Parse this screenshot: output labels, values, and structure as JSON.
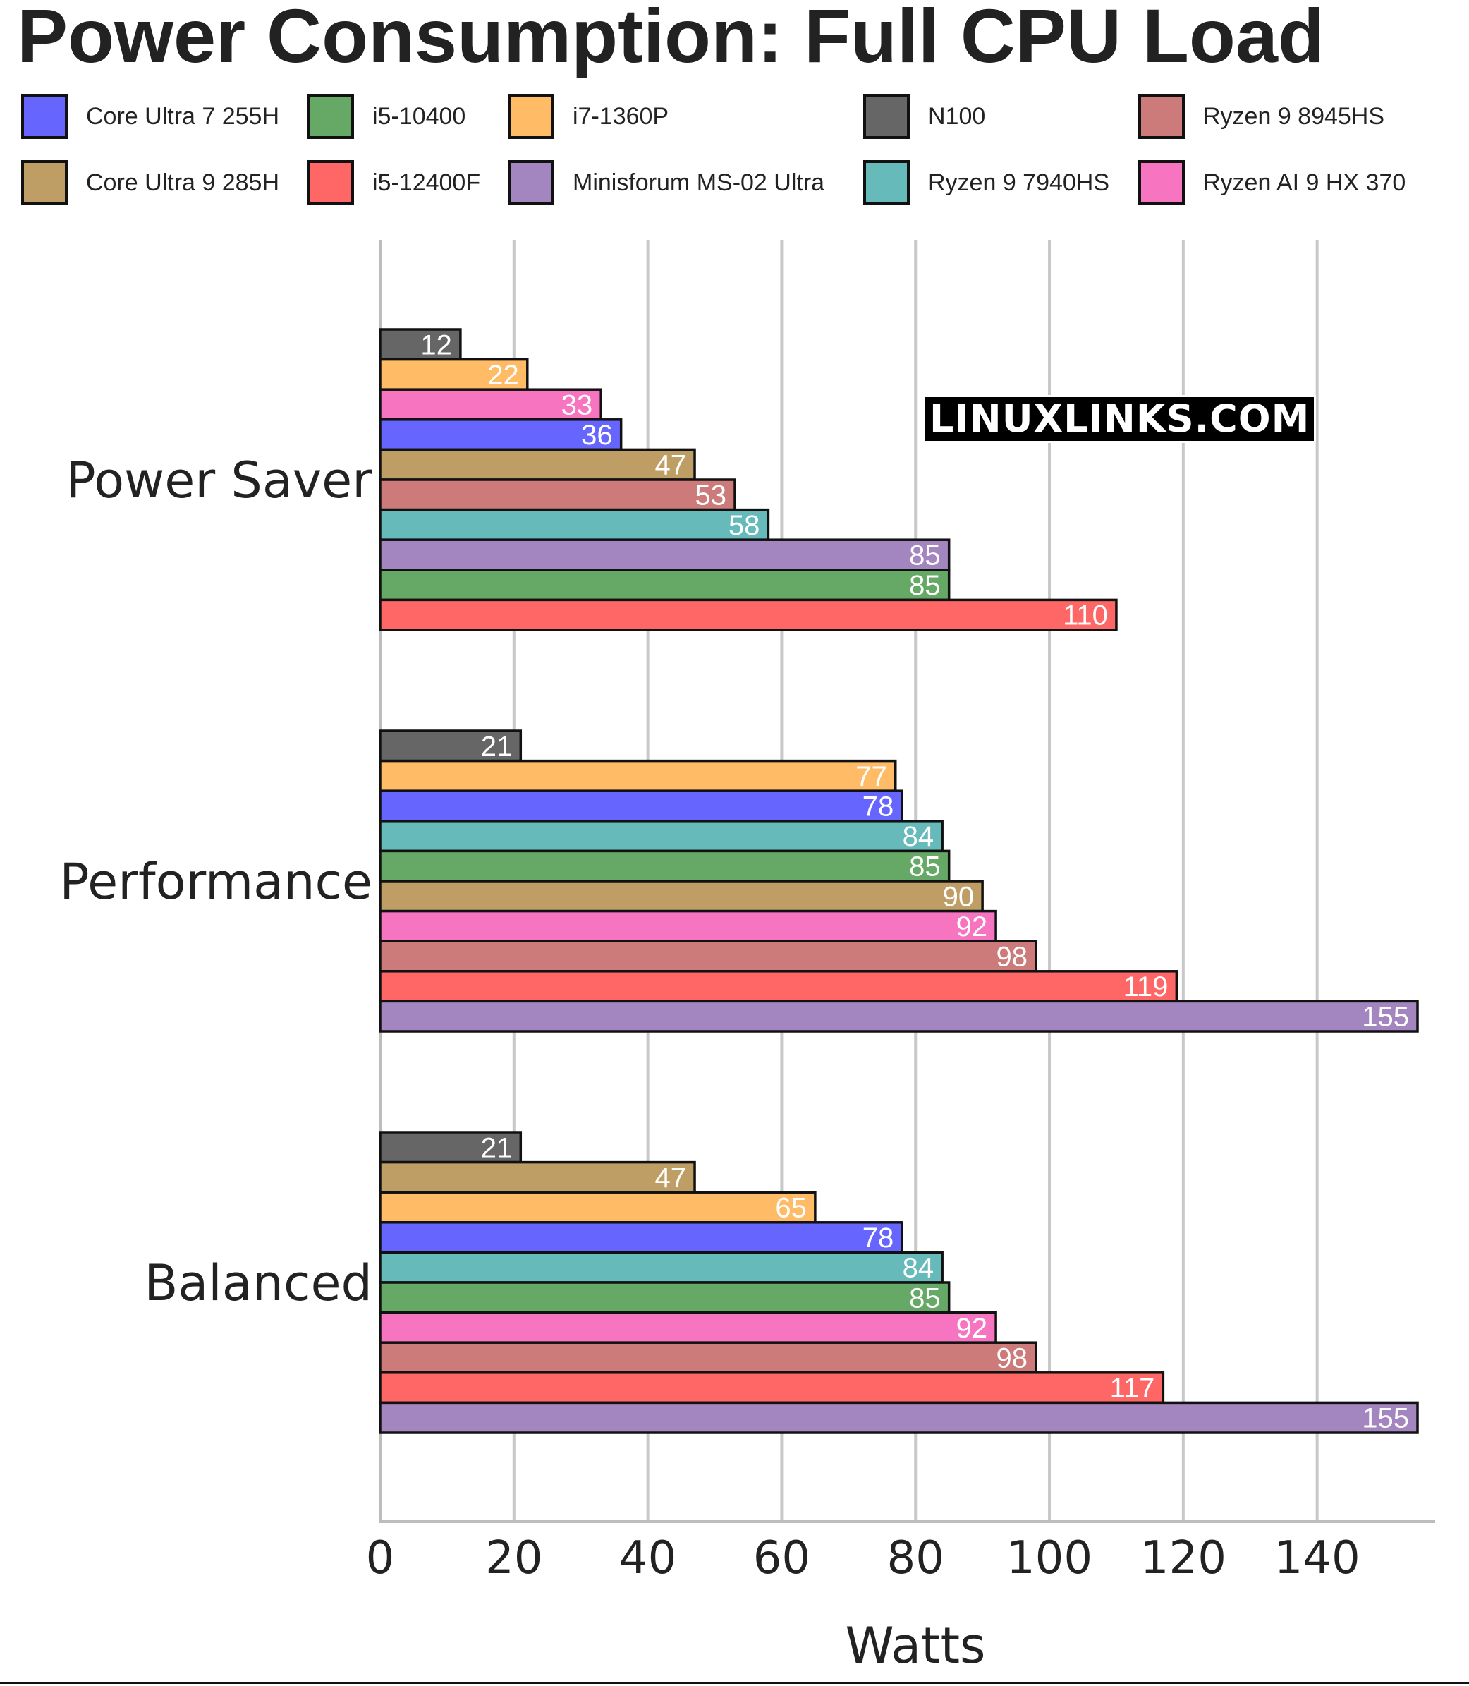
{
  "chart_data": {
    "type": "bar",
    "orientation": "horizontal",
    "title": "Power Consumption: Full CPU Load",
    "xlabel": "Watts",
    "ylabel": "",
    "xlim": [
      0,
      155
    ],
    "xticks": [
      0,
      20,
      40,
      60,
      80,
      100,
      120,
      140
    ],
    "grid": true,
    "legend_position": "top",
    "watermark": "LINUXLINKS.COM",
    "series_colors": {
      "Core Ultra 7 255H": "#6666ff",
      "i5-10400": "#66a866",
      "i7-1360P": "#ffbb66",
      "N100": "#666666",
      "Ryzen 9 8945HS": "#cc7a7a",
      "Core Ultra 9 285H": "#bf9e66",
      "i5-12400F": "#ff6666",
      "Minisforum MS-02 Ultra": "#a385bf",
      "Ryzen 9 7940HS": "#66bab9",
      "Ryzen AI 9 HX 370": "#f774c1"
    },
    "legend": [
      "Core Ultra 7 255H",
      "i5-10400",
      "i7-1360P",
      "N100",
      "Ryzen 9 8945HS",
      "Core Ultra 9 285H",
      "i5-12400F",
      "Minisforum MS-02 Ultra",
      "Ryzen 9 7940HS",
      "Ryzen AI 9 HX 370"
    ],
    "groups": [
      {
        "category": "Power Saver",
        "bars": [
          {
            "series": "N100",
            "value": 12
          },
          {
            "series": "i7-1360P",
            "value": 22
          },
          {
            "series": "Ryzen AI 9 HX 370",
            "value": 33
          },
          {
            "series": "Core Ultra 7 255H",
            "value": 36
          },
          {
            "series": "Core Ultra 9 285H",
            "value": 47
          },
          {
            "series": "Ryzen 9 8945HS",
            "value": 53
          },
          {
            "series": "Ryzen 9 7940HS",
            "value": 58
          },
          {
            "series": "Minisforum MS-02 Ultra",
            "value": 85
          },
          {
            "series": "i5-10400",
            "value": 85
          },
          {
            "series": "i5-12400F",
            "value": 110
          }
        ]
      },
      {
        "category": "Performance",
        "bars": [
          {
            "series": "N100",
            "value": 21
          },
          {
            "series": "i7-1360P",
            "value": 77
          },
          {
            "series": "Core Ultra 7 255H",
            "value": 78
          },
          {
            "series": "Ryzen 9 7940HS",
            "value": 84
          },
          {
            "series": "i5-10400",
            "value": 85
          },
          {
            "series": "Core Ultra 9 285H",
            "value": 90
          },
          {
            "series": "Ryzen AI 9 HX 370",
            "value": 92
          },
          {
            "series": "Ryzen 9 8945HS",
            "value": 98
          },
          {
            "series": "i5-12400F",
            "value": 119
          },
          {
            "series": "Minisforum MS-02 Ultra",
            "value": 155
          }
        ]
      },
      {
        "category": "Balanced",
        "bars": [
          {
            "series": "N100",
            "value": 21
          },
          {
            "series": "Core Ultra 9 285H",
            "value": 47
          },
          {
            "series": "i7-1360P",
            "value": 65
          },
          {
            "series": "Core Ultra 7 255H",
            "value": 78
          },
          {
            "series": "Ryzen 9 7940HS",
            "value": 84
          },
          {
            "series": "i5-10400",
            "value": 85
          },
          {
            "series": "Ryzen AI 9 HX 370",
            "value": 92
          },
          {
            "series": "Ryzen 9 8945HS",
            "value": 98
          },
          {
            "series": "i5-12400F",
            "value": 117
          },
          {
            "series": "Minisforum MS-02 Ultra",
            "value": 155
          }
        ]
      }
    ]
  }
}
